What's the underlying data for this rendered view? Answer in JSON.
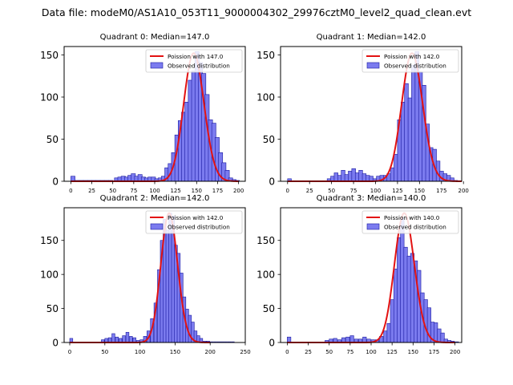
{
  "figure_title": "Data file: modeM0/AS1A10_053T11_9000004302_29976cztM0_level2_quad_clean.evt",
  "colors": {
    "bar_fill": "#7b7bef",
    "bar_edge": "#1a1aa0",
    "curve": "#e31212",
    "axis": "#000000"
  },
  "chart_data": [
    {
      "type": "bar",
      "title": "Quadrant 0: Median=147.0",
      "xlim": [
        -8,
        208
      ],
      "ylim": [
        0,
        160
      ],
      "xticks": [
        0,
        25,
        50,
        75,
        100,
        125,
        150,
        175,
        200
      ],
      "yticks": [
        0,
        50,
        100,
        150
      ],
      "legend": {
        "position": "top-right",
        "entries": [
          "Poission with 147.0",
          "Observed distribution"
        ]
      },
      "bin_width": 5,
      "bins": [
        [
          0,
          6
        ],
        [
          5,
          1
        ],
        [
          10,
          1
        ],
        [
          15,
          1
        ],
        [
          20,
          1
        ],
        [
          25,
          1
        ],
        [
          30,
          1
        ],
        [
          35,
          1
        ],
        [
          40,
          1
        ],
        [
          45,
          1
        ],
        [
          52,
          4
        ],
        [
          56,
          5
        ],
        [
          60,
          6
        ],
        [
          64,
          5
        ],
        [
          68,
          7
        ],
        [
          72,
          9
        ],
        [
          76,
          6
        ],
        [
          80,
          8
        ],
        [
          84,
          5
        ],
        [
          88,
          4
        ],
        [
          92,
          5
        ],
        [
          96,
          5
        ],
        [
          100,
          3
        ],
        [
          104,
          4
        ],
        [
          108,
          6
        ],
        [
          112,
          16
        ],
        [
          116,
          21
        ],
        [
          120,
          34
        ],
        [
          124,
          55
        ],
        [
          128,
          72
        ],
        [
          132,
          82
        ],
        [
          136,
          94
        ],
        [
          140,
          120
        ],
        [
          144,
          131
        ],
        [
          148,
          154
        ],
        [
          152,
          141
        ],
        [
          156,
          128
        ],
        [
          160,
          103
        ],
        [
          164,
          73
        ],
        [
          168,
          69
        ],
        [
          172,
          52
        ],
        [
          176,
          34
        ],
        [
          180,
          22
        ],
        [
          184,
          13
        ],
        [
          188,
          4
        ],
        [
          192,
          2
        ],
        [
          196,
          1
        ]
      ],
      "poisson_lambda": 147,
      "poisson_scale": 152
    },
    {
      "type": "bar",
      "title": "Quadrant 1: Median=142.0",
      "xlim": [
        -8,
        198
      ],
      "ylim": [
        0,
        160
      ],
      "xticks": [
        0,
        25,
        50,
        75,
        100,
        125,
        150,
        175,
        200
      ],
      "yticks": [
        0,
        50,
        100,
        150
      ],
      "legend": {
        "position": "top-right",
        "entries": [
          "Poission with 142.0",
          "Observed distribution"
        ]
      },
      "bin_width": 4.3,
      "bins": [
        [
          0,
          3
        ],
        [
          45,
          3
        ],
        [
          49,
          6
        ],
        [
          53,
          10
        ],
        [
          57,
          7
        ],
        [
          61,
          13
        ],
        [
          65,
          8
        ],
        [
          69,
          12
        ],
        [
          73,
          15
        ],
        [
          77,
          10
        ],
        [
          81,
          13
        ],
        [
          85,
          9
        ],
        [
          89,
          7
        ],
        [
          93,
          6
        ],
        [
          97,
          3
        ],
        [
          101,
          6
        ],
        [
          105,
          7
        ],
        [
          109,
          7
        ],
        [
          113,
          9
        ],
        [
          117,
          16
        ],
        [
          121,
          32
        ],
        [
          125,
          73
        ],
        [
          129,
          94
        ],
        [
          133,
          116
        ],
        [
          137,
          99
        ],
        [
          141,
          138
        ],
        [
          145,
          154
        ],
        [
          149,
          130
        ],
        [
          153,
          114
        ],
        [
          157,
          68
        ],
        [
          161,
          40
        ],
        [
          165,
          38
        ],
        [
          169,
          24
        ],
        [
          173,
          12
        ],
        [
          177,
          9
        ],
        [
          181,
          7
        ],
        [
          185,
          4
        ],
        [
          189,
          1
        ]
      ],
      "poisson_lambda": 142,
      "poisson_scale": 152
    },
    {
      "type": "bar",
      "title": "Quadrant 2: Median=142.0",
      "xlim": [
        -8,
        250
      ],
      "ylim": [
        0,
        198
      ],
      "xticks": [
        0,
        50,
        100,
        150,
        200,
        250
      ],
      "yticks": [
        0,
        50,
        100,
        150
      ],
      "legend": {
        "position": "top-right",
        "entries": [
          "Poission with 142.0",
          "Observed distribution"
        ]
      },
      "bin_width": 4.3,
      "bins": [
        [
          0,
          6
        ],
        [
          45,
          4
        ],
        [
          50,
          6
        ],
        [
          55,
          7
        ],
        [
          60,
          13
        ],
        [
          65,
          8
        ],
        [
          70,
          6
        ],
        [
          75,
          10
        ],
        [
          80,
          15
        ],
        [
          85,
          9
        ],
        [
          90,
          7
        ],
        [
          95,
          3
        ],
        [
          100,
          4
        ],
        [
          105,
          9
        ],
        [
          110,
          17
        ],
        [
          115,
          35
        ],
        [
          120,
          58
        ],
        [
          125,
          107
        ],
        [
          129,
          150
        ],
        [
          133,
          181
        ],
        [
          137,
          165
        ],
        [
          141,
          190
        ],
        [
          145,
          186
        ],
        [
          149,
          143
        ],
        [
          153,
          131
        ],
        [
          157,
          102
        ],
        [
          161,
          67
        ],
        [
          165,
          49
        ],
        [
          169,
          40
        ],
        [
          173,
          30
        ],
        [
          177,
          17
        ],
        [
          181,
          10
        ],
        [
          185,
          6
        ],
        [
          190,
          2
        ],
        [
          195,
          2
        ],
        [
          200,
          1
        ],
        [
          205,
          1
        ],
        [
          210,
          1
        ],
        [
          215,
          1
        ],
        [
          220,
          1
        ],
        [
          225,
          1
        ],
        [
          230,
          1
        ]
      ],
      "poisson_lambda": 142,
      "poisson_scale": 190
    },
    {
      "type": "bar",
      "title": "Quadrant 3: Median=140.0",
      "xlim": [
        -8,
        208
      ],
      "ylim": [
        0,
        198
      ],
      "xticks": [
        0,
        25,
        50,
        75,
        100,
        125,
        150,
        175,
        200
      ],
      "yticks": [
        0,
        50,
        100,
        150
      ],
      "legend": {
        "position": "top-right",
        "entries": [
          "Poission with 140.0",
          "Observed distribution"
        ]
      },
      "bin_width": 4.3,
      "bins": [
        [
          0,
          8
        ],
        [
          45,
          3
        ],
        [
          50,
          5
        ],
        [
          55,
          6
        ],
        [
          60,
          4
        ],
        [
          65,
          7
        ],
        [
          70,
          8
        ],
        [
          75,
          10
        ],
        [
          80,
          5
        ],
        [
          85,
          5
        ],
        [
          90,
          8
        ],
        [
          95,
          5
        ],
        [
          100,
          4
        ],
        [
          105,
          4
        ],
        [
          110,
          9
        ],
        [
          115,
          17
        ],
        [
          119,
          28
        ],
        [
          123,
          63
        ],
        [
          127,
          108
        ],
        [
          131,
          154
        ],
        [
          135,
          183
        ],
        [
          139,
          140
        ],
        [
          143,
          127
        ],
        [
          147,
          131
        ],
        [
          151,
          120
        ],
        [
          155,
          106
        ],
        [
          159,
          73
        ],
        [
          163,
          63
        ],
        [
          167,
          51
        ],
        [
          171,
          30
        ],
        [
          175,
          29
        ],
        [
          179,
          20
        ],
        [
          183,
          14
        ],
        [
          187,
          5
        ],
        [
          191,
          3
        ],
        [
          195,
          2
        ],
        [
          200,
          1
        ]
      ],
      "poisson_lambda": 140,
      "poisson_scale": 190
    }
  ]
}
